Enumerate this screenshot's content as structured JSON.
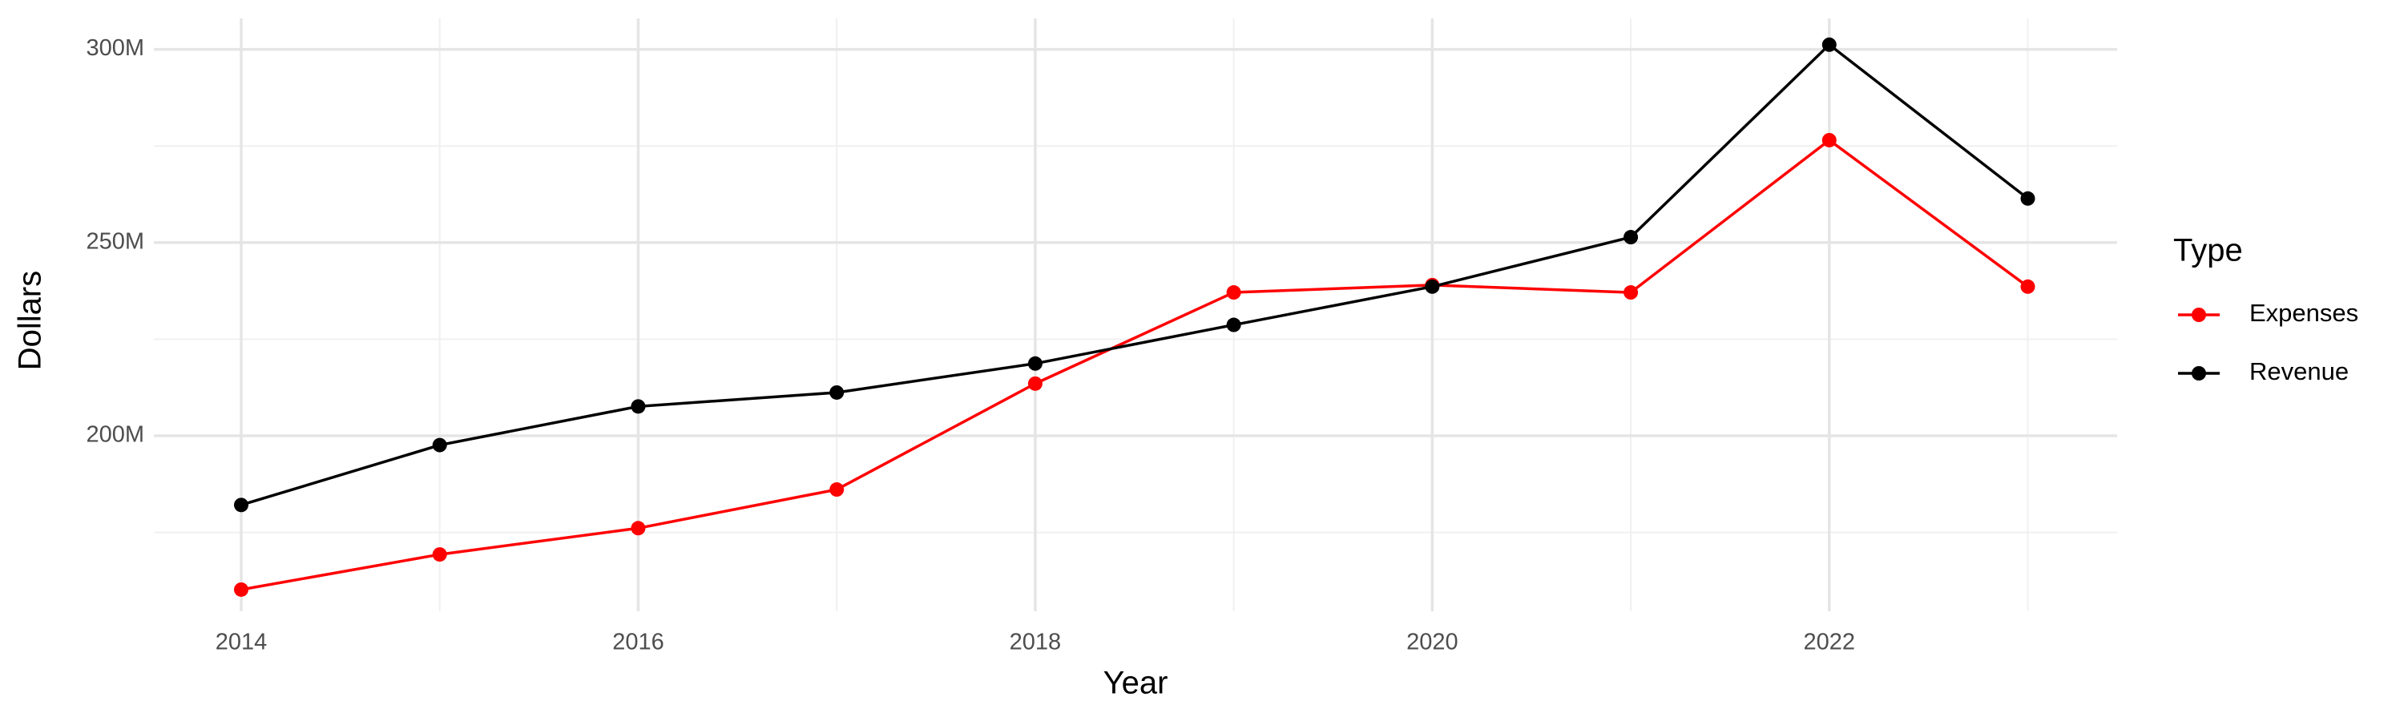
{
  "chart_data": {
    "type": "line",
    "x_label": "Year",
    "y_label": "Dollars",
    "x": [
      2014,
      2015,
      2016,
      2017,
      2018,
      2019,
      2020,
      2021,
      2022,
      2023
    ],
    "series": [
      {
        "name": "Expenses",
        "color": "#ff0000",
        "values": [
          160200000,
          169300000,
          176100000,
          186100000,
          213500000,
          237100000,
          239000000,
          237100000,
          276500000,
          238600000
        ]
      },
      {
        "name": "Revenue",
        "color": "#000000",
        "values": [
          182100000,
          197600000,
          207600000,
          211200000,
          218700000,
          228700000,
          238600000,
          251400000,
          301200000,
          261400000
        ]
      }
    ],
    "legend_title": "Type",
    "legend_position": "right",
    "xlim": [
      2013.56,
      2023.45
    ],
    "xticks": [
      2014,
      2016,
      2018,
      2020,
      2022
    ],
    "minor_xticks": [
      2015,
      2017,
      2019,
      2021,
      2023
    ],
    "ylim": [
      154600000,
      308000000
    ],
    "yticks": [
      {
        "value": 200000000,
        "label": "200M"
      },
      {
        "value": 250000000,
        "label": "250M"
      },
      {
        "value": 300000000,
        "label": "300M"
      }
    ],
    "minor_yticks": [
      175000000,
      225000000,
      275000000
    ],
    "grid": true
  }
}
